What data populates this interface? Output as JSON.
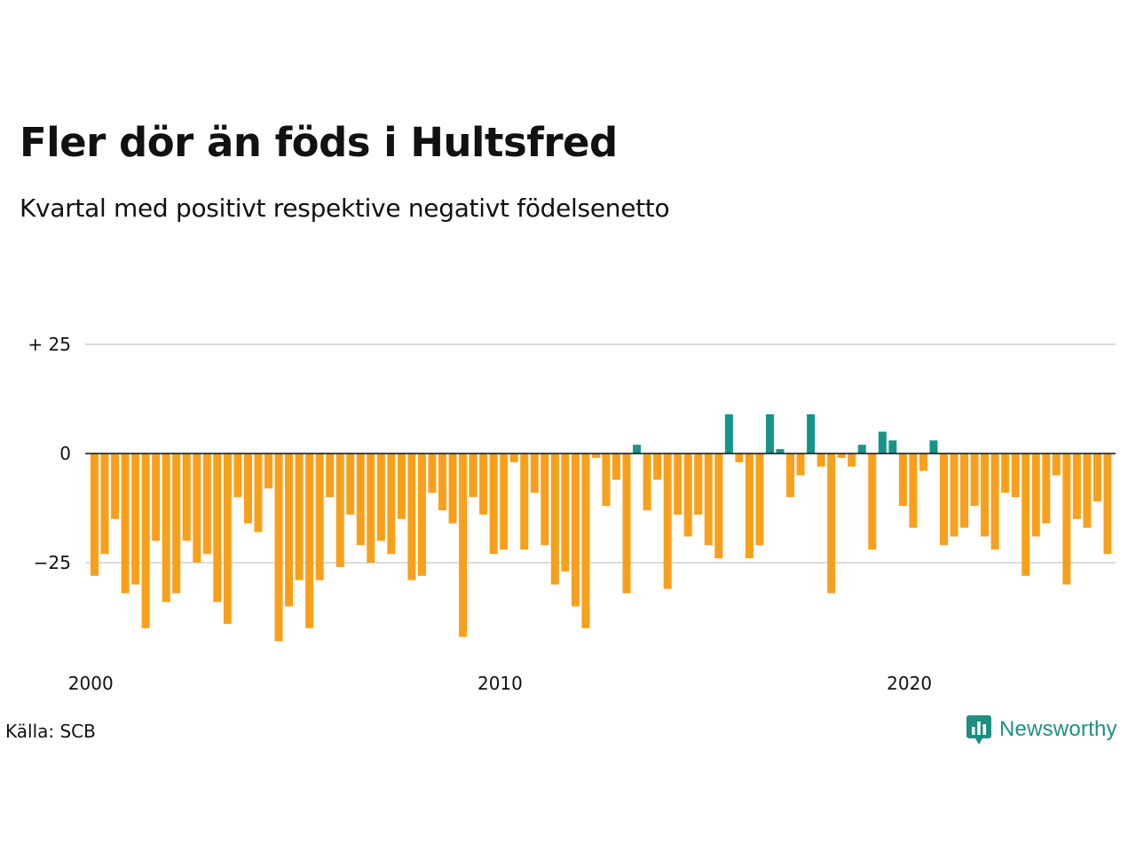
{
  "title": "Fler dör än föds i Hultsfred",
  "subtitle": "Kvartal med positivt respektive negativt födelsenetto",
  "source": "Källa: SCB",
  "logo_text": "Newsworthy",
  "colors": {
    "positive": "#17948a",
    "negative": "#f8a01c",
    "grid": "#dddddd",
    "zero_line": "#111111",
    "logo": "#1e8f82"
  },
  "chart_data": {
    "type": "bar",
    "xlabel": "",
    "ylabel": "",
    "ylim": [
      -45,
      30
    ],
    "grid": true,
    "y_ticks": [
      {
        "value": 25,
        "label": "+ 25"
      },
      {
        "value": 0,
        "label": "0"
      },
      {
        "value": -25,
        "label": "−25"
      }
    ],
    "x_ticks": [
      {
        "value": 2000,
        "label": "2000"
      },
      {
        "value": 2010,
        "label": "2010"
      },
      {
        "value": 2020,
        "label": "2020"
      }
    ],
    "start_year": 2000,
    "quarters_per_year": 4,
    "values": [
      -28,
      -23,
      -15,
      -32,
      -30,
      -40,
      -20,
      -34,
      -32,
      -20,
      -25,
      -23,
      -34,
      -39,
      -10,
      -16,
      -18,
      -8,
      -43,
      -35,
      -29,
      -40,
      -29,
      -10,
      -26,
      -14,
      -21,
      -25,
      -20,
      -23,
      -15,
      -29,
      -28,
      -9,
      -13,
      -16,
      -42,
      -10,
      -14,
      -23,
      -22,
      -2,
      -22,
      -9,
      -21,
      -30,
      -27,
      -35,
      -40,
      -1,
      -12,
      -6,
      -32,
      2,
      -13,
      -6,
      -31,
      -14,
      -19,
      -14,
      -21,
      -24,
      9,
      -2,
      -24,
      -21,
      9,
      1,
      -10,
      -5,
      9,
      -3,
      -32,
      -1,
      -3,
      2,
      -22,
      5,
      3,
      -12,
      -17,
      -4,
      3,
      -21,
      -19,
      -17,
      -12,
      -19,
      -22,
      -9,
      -10,
      -28,
      -19,
      -16,
      -5,
      -30,
      -15,
      -17,
      -11,
      -23
    ]
  }
}
